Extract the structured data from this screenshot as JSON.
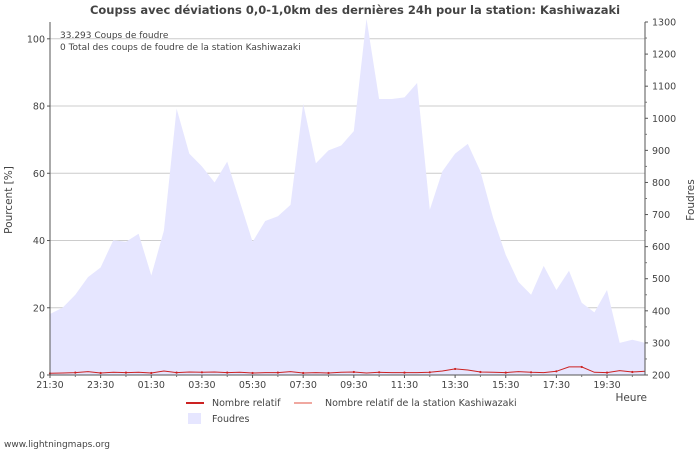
{
  "chart_data": {
    "type": "area",
    "title": "Coupss avec déviations 0,0-1,0km des dernières 24h pour la station: Kashiwazaki",
    "info_lines": [
      "33.293  Coups de foudre",
      "0 Total des coups de foudre de la station Kashiwazaki"
    ],
    "xlabel": "Heure",
    "ylabel_left": "Pourcent   [%]",
    "ylabel_right": "Foudres",
    "x_ticks": [
      "21:30",
      "23:30",
      "01:30",
      "03:30",
      "05:30",
      "07:30",
      "09:30",
      "11:30",
      "13:30",
      "15:30",
      "17:30",
      "19:30"
    ],
    "y_left": {
      "min": 0,
      "max": 105,
      "ticks": [
        0,
        20,
        40,
        60,
        80,
        100
      ]
    },
    "y_right": {
      "min": 200,
      "max": 1300,
      "ticks": [
        200,
        300,
        400,
        500,
        600,
        700,
        800,
        900,
        1000,
        1100,
        1200,
        1300
      ]
    },
    "series": [
      {
        "name": "Foudres",
        "axis": "right",
        "color": "#e6e6ff",
        "values": [
          390,
          410,
          450,
          505,
          535,
          620,
          615,
          640,
          510,
          650,
          1030,
          890,
          850,
          800,
          865,
          740,
          615,
          680,
          695,
          730,
          1045,
          860,
          900,
          915,
          960,
          1310,
          1060,
          1060,
          1065,
          1110,
          715,
          835,
          890,
          920,
          835,
          690,
          575,
          490,
          450,
          540,
          465,
          525,
          425,
          395,
          465,
          300,
          310,
          300
        ]
      },
      {
        "name": "Nombre relatif",
        "axis": "left",
        "color": "#cc2222",
        "values": [
          0.5,
          0.6,
          0.7,
          1.0,
          0.6,
          0.8,
          0.7,
          0.8,
          0.6,
          1.2,
          0.7,
          0.9,
          0.8,
          0.9,
          0.7,
          0.8,
          0.6,
          0.7,
          0.7,
          1.0,
          0.6,
          0.7,
          0.6,
          0.8,
          0.9,
          0.6,
          0.8,
          0.7,
          0.7,
          0.7,
          0.8,
          1.2,
          1.8,
          1.5,
          0.9,
          0.8,
          0.7,
          1.0,
          0.8,
          0.7,
          1.1,
          2.4,
          2.4,
          0.8,
          0.7,
          1.3,
          0.9,
          1.1
        ]
      },
      {
        "name": "Nombre relatif de la station Kashiwazaki",
        "axis": "left",
        "color": "#f0a8a0",
        "values": [
          0,
          0,
          0,
          0,
          0,
          0,
          0,
          0,
          0,
          0,
          0,
          0,
          0,
          0,
          0,
          0,
          0,
          0,
          0,
          0,
          0,
          0,
          0,
          0,
          0,
          0,
          0,
          0,
          0,
          0,
          0,
          0,
          0,
          0,
          0,
          0,
          0,
          0,
          0,
          0,
          0,
          0,
          0,
          0,
          0,
          0,
          0,
          0
        ]
      }
    ],
    "legend": [
      {
        "label": "Nombre relatif",
        "kind": "line",
        "color": "#cc2222"
      },
      {
        "label": "Nombre relatif de la station Kashiwazaki",
        "kind": "line",
        "color": "#f0a8a0"
      },
      {
        "label": "Foudres",
        "kind": "box",
        "color": "#e6e6ff"
      }
    ]
  },
  "footer": {
    "credit": "www.lightningmaps.org"
  }
}
